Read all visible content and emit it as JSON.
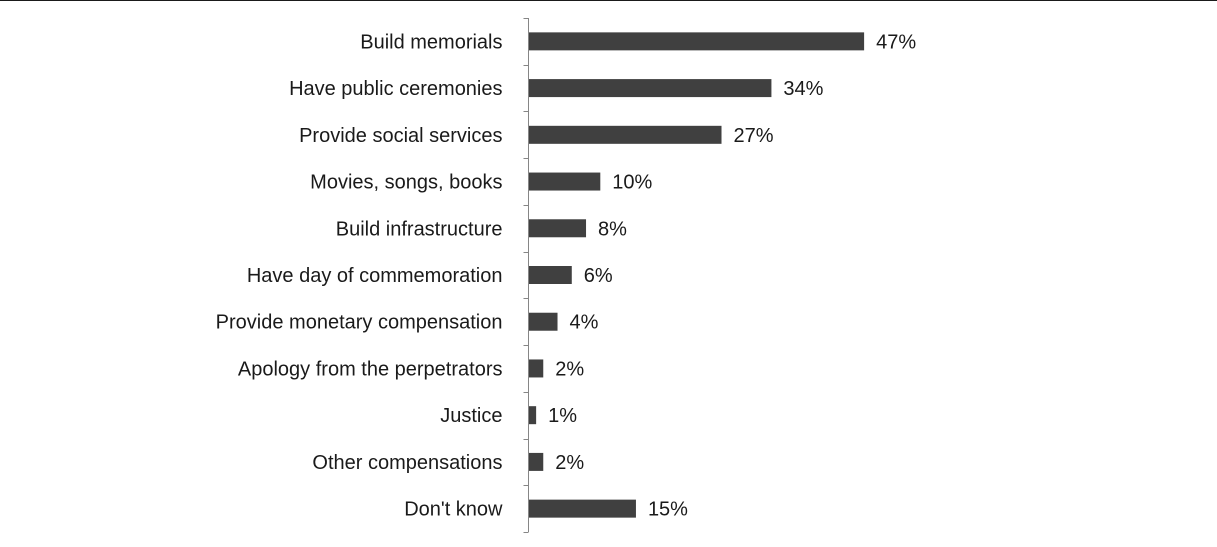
{
  "chart_data": {
    "type": "bar",
    "orientation": "horizontal",
    "categories": [
      "Build memorials",
      "Have public ceremonies",
      "Provide social services",
      "Movies, songs, books",
      "Build infrastructure",
      "Have day of commemoration",
      "Provide monetary compensation",
      "Apology from the perpetrators",
      "Justice",
      "Other compensations",
      "Don't know"
    ],
    "values": [
      47,
      34,
      27,
      10,
      8,
      6,
      4,
      2,
      1,
      2,
      15
    ],
    "value_labels": [
      "47%",
      "34%",
      "27%",
      "10%",
      "8%",
      "6%",
      "4%",
      "2%",
      "1%",
      "2%",
      "15%"
    ],
    "title": "",
    "xlabel": "",
    "ylabel": "",
    "xlim": [
      0,
      100
    ],
    "grid": false,
    "legend": "none",
    "bar_color": "#404040"
  }
}
